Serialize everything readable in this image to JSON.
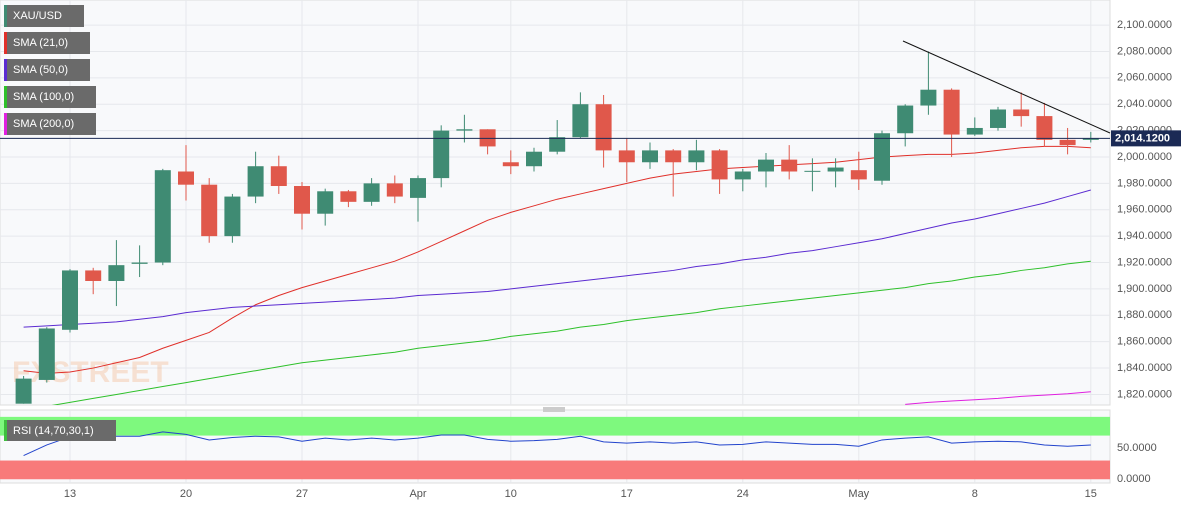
{
  "chart_data": {
    "type": "candlestick",
    "categories": [
      null,
      null,
      "13",
      null,
      null,
      null,
      null,
      "20",
      null,
      null,
      null,
      null,
      "27",
      null,
      null,
      null,
      null,
      "Apr",
      null,
      null,
      null,
      "10",
      null,
      null,
      null,
      null,
      "17",
      null,
      null,
      null,
      null,
      "24",
      null,
      null,
      null,
      null,
      "May",
      null,
      null,
      null,
      null,
      "8",
      null,
      null,
      null,
      null,
      "15"
    ],
    "series": [
      {
        "name": "XAU/USD",
        "up_color": "#3f8b73",
        "down_color": "#e0584b",
        "open": [
          1813,
          1831,
          1869,
          1914,
          1906,
          1919,
          1920,
          1989,
          1979,
          1940,
          1970,
          1993,
          1978,
          1957,
          1974,
          1966,
          1980,
          1969,
          1984,
          2020,
          2021,
          1996,
          1993,
          2004,
          2015,
          2040,
          2005,
          1996,
          2005,
          1996,
          2005,
          1983,
          1989,
          1998,
          1989,
          1989,
          1990,
          1982,
          2018,
          2039,
          2051,
          2017,
          2022,
          2036,
          2031,
          2013,
          2013
        ],
        "high": [
          1834,
          1871,
          1915,
          1916,
          1937,
          1933,
          1991,
          2009,
          1984,
          1972,
          2004,
          2001,
          1981,
          1976,
          1975,
          1984,
          1986,
          1986,
          2024,
          2032,
          2021,
          2005,
          2007,
          2028,
          2049,
          2047,
          2014,
          2011,
          2006,
          2013,
          2006,
          1991,
          2003,
          2009,
          1999,
          1999,
          2004,
          2020,
          2040,
          2080,
          2052,
          2030,
          2038,
          2049,
          2041,
          2022,
          2019
        ],
        "low": [
          1813,
          1829,
          1867,
          1896,
          1887,
          1909,
          1918,
          1967,
          1935,
          1935,
          1965,
          1972,
          1945,
          1948,
          1962,
          1963,
          1965,
          1951,
          1977,
          2011,
          2002,
          1987,
          1989,
          2002,
          2014,
          1992,
          1981,
          1991,
          1970,
          1990,
          1972,
          1974,
          1977,
          1983,
          1974,
          1977,
          1975,
          1979,
          2008,
          2032,
          2000,
          2016,
          2020,
          2023,
          2008,
          2002,
          2011
        ],
        "close": [
          1832,
          1870,
          1914,
          1906,
          1918,
          1920,
          1990,
          1979,
          1940,
          1970,
          1993,
          1978,
          1957,
          1974,
          1966,
          1980,
          1970,
          1984,
          2020,
          2021,
          2008,
          1993,
          2004,
          2015,
          2040,
          2005,
          1996,
          2005,
          1996,
          2005,
          1983,
          1989,
          1998,
          1989,
          1989.5,
          1992,
          1983,
          2018,
          2039,
          2051,
          2017,
          2022,
          2036,
          2031,
          2013,
          2009,
          2014.12
        ]
      }
    ],
    "overlays": [
      {
        "name": "SMA (21,0)",
        "color": "#e0302a",
        "values": [
          1838,
          1836,
          1837,
          1840,
          1844,
          1848,
          1855,
          1861,
          1867,
          1878,
          1888,
          1895,
          1901,
          1906,
          1911,
          1916,
          1921,
          1928,
          1936,
          1944,
          1952,
          1958,
          1963,
          1968,
          1972,
          1976,
          1980,
          1984,
          1987,
          1989,
          1991,
          1992,
          1993,
          1994,
          1995,
          1996,
          1998,
          2000,
          2001,
          2002,
          2002,
          2003,
          2005,
          2007,
          2008,
          2008,
          2007
        ]
      },
      {
        "name": "SMA (50,0)",
        "color": "#5b2bd1",
        "values": [
          1871,
          1872,
          1873,
          1874,
          1875,
          1877,
          1879,
          1882,
          1884,
          1886,
          1887,
          1888,
          1889,
          1890,
          1891,
          1892,
          1893,
          1895,
          1896,
          1897,
          1898,
          1900,
          1902,
          1904,
          1906,
          1908,
          1910,
          1912,
          1914,
          1917,
          1919,
          1922,
          1924,
          1927,
          1929,
          1932,
          1935,
          1938,
          1942,
          1946,
          1950,
          1953,
          1957,
          1961,
          1965,
          1970,
          1975
        ]
      },
      {
        "name": "SMA (100,0)",
        "color": "#2ec02a",
        "values": [
          1808,
          1811,
          1814,
          1817,
          1820,
          1823,
          1826,
          1829,
          1832,
          1835,
          1838,
          1841,
          1844,
          1846,
          1848,
          1850,
          1852,
          1855,
          1857,
          1859,
          1861,
          1864,
          1866,
          1868,
          1871,
          1873,
          1876,
          1878,
          1880,
          1882,
          1885,
          1887,
          1889,
          1891,
          1893,
          1895,
          1897,
          1899,
          1901,
          1904,
          1906,
          1909,
          1911,
          1914,
          1916,
          1919,
          1921
        ]
      },
      {
        "name": "SMA (200,0)",
        "color": "#e020e0",
        "values": [
          null,
          null,
          null,
          null,
          null,
          null,
          null,
          null,
          null,
          null,
          null,
          null,
          null,
          null,
          null,
          null,
          null,
          null,
          null,
          null,
          null,
          null,
          null,
          null,
          null,
          null,
          null,
          null,
          null,
          null,
          null,
          null,
          null,
          null,
          null,
          null,
          null,
          null,
          1812.5,
          1814,
          1815,
          1816,
          1817,
          1818.5,
          1819.5,
          1820.5,
          1822
        ]
      }
    ],
    "ylim": [
      1812,
      2119
    ],
    "yticks": [
      {
        "value": 1820,
        "label": "1,820.0000"
      },
      {
        "value": 1840,
        "label": "1,840.0000"
      },
      {
        "value": 1860,
        "label": "1,860.0000"
      },
      {
        "value": 1880,
        "label": "1,880.0000"
      },
      {
        "value": 1900,
        "label": "1,900.0000"
      },
      {
        "value": 1920,
        "label": "1,920.0000"
      },
      {
        "value": 1940,
        "label": "1,940.0000"
      },
      {
        "value": 1960,
        "label": "1,960.0000"
      },
      {
        "value": 1980,
        "label": "1,980.0000"
      },
      {
        "value": 2000,
        "label": "2,000.0000"
      },
      {
        "value": 2020,
        "label": "2,020.0000"
      },
      {
        "value": 2040,
        "label": "2,040.0000"
      },
      {
        "value": 2060,
        "label": "2,060.0000"
      },
      {
        "value": 2080,
        "label": "2,080.0000"
      },
      {
        "value": 2100,
        "label": "2,100.0000"
      }
    ],
    "grid": true,
    "last_price": {
      "value": 2014.12,
      "label": "2,014.1200",
      "color": "#1b2a55"
    },
    "watermark": "FXSTREET",
    "rsi": {
      "name": "RSI (14,70,30,1)",
      "color": "#2244cc",
      "values": [
        38,
        55,
        68,
        68,
        69,
        69,
        76,
        72,
        63,
        67,
        69,
        68,
        61,
        66,
        63,
        66,
        63,
        66,
        71,
        71,
        64,
        61,
        62,
        64,
        69,
        60,
        58,
        60,
        58,
        60,
        55,
        56,
        60,
        58,
        56,
        56,
        53,
        63,
        66,
        68,
        58,
        60,
        61,
        60,
        55,
        53,
        55
      ],
      "ylim": [
        -6,
        111
      ],
      "yticks": [
        {
          "value": 50,
          "label": "50.0000"
        },
        {
          "value": 0,
          "label": "0.0000"
        }
      ],
      "bands": [
        {
          "from": 70,
          "to": 100,
          "color": "#7ef97e"
        },
        {
          "from": 0,
          "to": 30,
          "color": "#f87a7a"
        }
      ]
    }
  }
}
